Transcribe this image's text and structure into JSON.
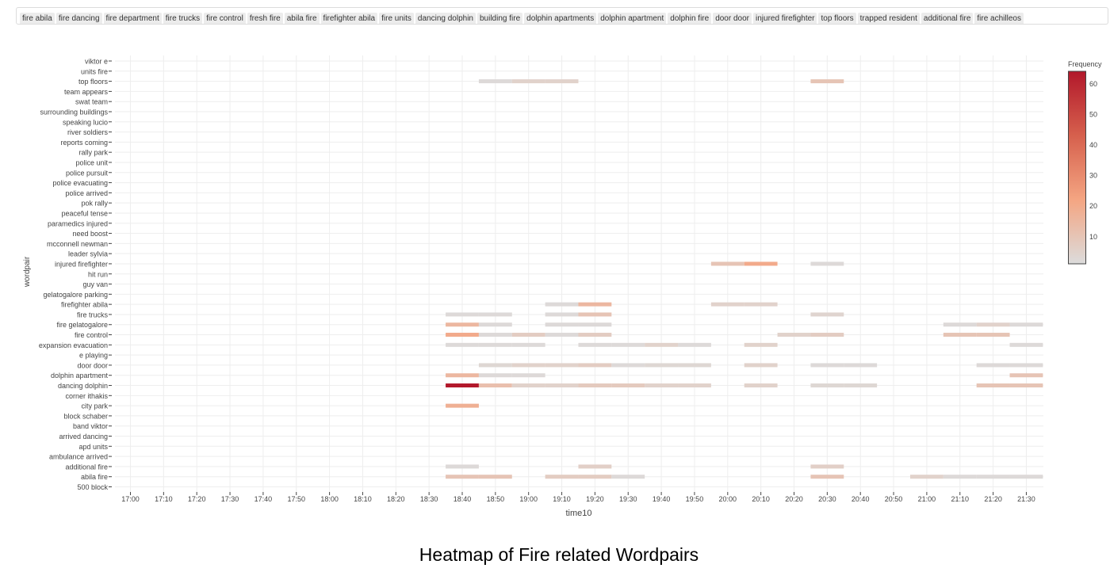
{
  "filter_tags": [
    "fire abila",
    "fire dancing",
    "fire department",
    "fire trucks",
    "fire control",
    "fresh fire",
    "abila fire",
    "firefighter abila",
    "fire units",
    "dancing dolphin",
    "building fire",
    "dolphin apartments",
    "dolphin apartment",
    "dolphin fire",
    "door door",
    "injured firefighter",
    "top floors",
    "trapped resident",
    "additional fire",
    "fire achilleos"
  ],
  "caption": "Heatmap of Fire related Wordpairs",
  "chart_data": {
    "type": "heatmap",
    "xlabel": "time10",
    "ylabel": "wordpair",
    "legend_title": "Frequency",
    "legend_ticks": [
      10,
      20,
      30,
      40,
      50,
      60
    ],
    "zlim": [
      1,
      64
    ],
    "colorscale": [
      "#dcdcdc",
      "#f4a582",
      "#d6604d",
      "#b2182b"
    ],
    "x_ticks": [
      "17:00",
      "17:10",
      "17:20",
      "17:30",
      "17:40",
      "17:50",
      "18:00",
      "18:10",
      "18:20",
      "18:30",
      "18:40",
      "18:50",
      "19:00",
      "19:10",
      "19:20",
      "19:30",
      "19:40",
      "19:50",
      "20:00",
      "20:10",
      "20:20",
      "20:30",
      "20:40",
      "20:50",
      "21:00",
      "21:10",
      "21:20",
      "21:30"
    ],
    "y_categories": [
      "500 block",
      "abila fire",
      "additional fire",
      "ambulance arrived",
      "apd units",
      "arrived dancing",
      "band viktor",
      "block schaber",
      "city park",
      "corner ithakis",
      "dancing dolphin",
      "dolphin apartment",
      "door door",
      "e playing",
      "expansion evacuation",
      "fire control",
      "fire gelatogalore",
      "fire trucks",
      "firefighter abila",
      "gelatogalore parking",
      "guy van",
      "hit run",
      "injured firefighter",
      "leader sylvia",
      "mcconnell newman",
      "need boost",
      "paramedics injured",
      "peaceful tense",
      "pok rally",
      "police arrived",
      "police evacuating",
      "police pursuit",
      "police unit",
      "rally park",
      "reports coming",
      "river soldiers",
      "speaking lucio",
      "surrounding buildings",
      "swat team",
      "team appears",
      "top floors",
      "units fire",
      "viktor e"
    ],
    "cells": [
      {
        "y": "top floors",
        "x": "18:50",
        "z": 2
      },
      {
        "y": "top floors",
        "x": "19:00",
        "z": 5
      },
      {
        "y": "top floors",
        "x": "19:10",
        "z": 5
      },
      {
        "y": "top floors",
        "x": "20:30",
        "z": 10
      },
      {
        "y": "injured firefighter",
        "x": "20:00",
        "z": 10
      },
      {
        "y": "injured firefighter",
        "x": "20:10",
        "z": 20
      },
      {
        "y": "injured firefighter",
        "x": "20:30",
        "z": 2
      },
      {
        "y": "firefighter abila",
        "x": "19:10",
        "z": 2
      },
      {
        "y": "firefighter abila",
        "x": "19:20",
        "z": 15
      },
      {
        "y": "firefighter abila",
        "x": "20:00",
        "z": 5
      },
      {
        "y": "firefighter abila",
        "x": "20:10",
        "z": 5
      },
      {
        "y": "fire trucks",
        "x": "18:40",
        "z": 2
      },
      {
        "y": "fire trucks",
        "x": "18:50",
        "z": 2
      },
      {
        "y": "fire trucks",
        "x": "19:10",
        "z": 2
      },
      {
        "y": "fire trucks",
        "x": "19:20",
        "z": 10
      },
      {
        "y": "fire trucks",
        "x": "20:30",
        "z": 4
      },
      {
        "y": "fire gelatogalore",
        "x": "18:40",
        "z": 15
      },
      {
        "y": "fire gelatogalore",
        "x": "18:50",
        "z": 2
      },
      {
        "y": "fire gelatogalore",
        "x": "19:10",
        "z": 2
      },
      {
        "y": "fire gelatogalore",
        "x": "19:20",
        "z": 2
      },
      {
        "y": "fire gelatogalore",
        "x": "21:10",
        "z": 2
      },
      {
        "y": "fire gelatogalore",
        "x": "21:20",
        "z": 5
      },
      {
        "y": "fire gelatogalore",
        "x": "21:30",
        "z": 2
      },
      {
        "y": "fire control",
        "x": "18:40",
        "z": 20
      },
      {
        "y": "fire control",
        "x": "18:50",
        "z": 2
      },
      {
        "y": "fire control",
        "x": "19:00",
        "z": 7
      },
      {
        "y": "fire control",
        "x": "19:10",
        "z": 2
      },
      {
        "y": "fire control",
        "x": "19:20",
        "z": 7
      },
      {
        "y": "fire control",
        "x": "20:20",
        "z": 5
      },
      {
        "y": "fire control",
        "x": "20:30",
        "z": 7
      },
      {
        "y": "fire control",
        "x": "21:10",
        "z": 10
      },
      {
        "y": "fire control",
        "x": "21:20",
        "z": 10
      },
      {
        "y": "expansion evacuation",
        "x": "18:40",
        "z": 2
      },
      {
        "y": "expansion evacuation",
        "x": "18:50",
        "z": 2
      },
      {
        "y": "expansion evacuation",
        "x": "19:00",
        "z": 2
      },
      {
        "y": "expansion evacuation",
        "x": "19:20",
        "z": 2
      },
      {
        "y": "expansion evacuation",
        "x": "19:30",
        "z": 2
      },
      {
        "y": "expansion evacuation",
        "x": "19:40",
        "z": 5
      },
      {
        "y": "expansion evacuation",
        "x": "19:50",
        "z": 2
      },
      {
        "y": "expansion evacuation",
        "x": "20:10",
        "z": 5
      },
      {
        "y": "expansion evacuation",
        "x": "21:30",
        "z": 2
      },
      {
        "y": "door door",
        "x": "18:50",
        "z": 3
      },
      {
        "y": "door door",
        "x": "19:00",
        "z": 5
      },
      {
        "y": "door door",
        "x": "19:10",
        "z": 5
      },
      {
        "y": "door door",
        "x": "19:20",
        "z": 7
      },
      {
        "y": "door door",
        "x": "19:30",
        "z": 2
      },
      {
        "y": "door door",
        "x": "19:40",
        "z": 3
      },
      {
        "y": "door door",
        "x": "19:50",
        "z": 3
      },
      {
        "y": "door door",
        "x": "20:10",
        "z": 5
      },
      {
        "y": "door door",
        "x": "20:30",
        "z": 2
      },
      {
        "y": "door door",
        "x": "20:40",
        "z": 2
      },
      {
        "y": "door door",
        "x": "21:20",
        "z": 2
      },
      {
        "y": "door door",
        "x": "21:30",
        "z": 2
      },
      {
        "y": "dolphin apartment",
        "x": "18:40",
        "z": 15
      },
      {
        "y": "dolphin apartment",
        "x": "18:50",
        "z": 2
      },
      {
        "y": "dolphin apartment",
        "x": "19:00",
        "z": 2
      },
      {
        "y": "dolphin apartment",
        "x": "21:30",
        "z": 10
      },
      {
        "y": "dancing dolphin",
        "x": "18:40",
        "z": 64
      },
      {
        "y": "dancing dolphin",
        "x": "18:50",
        "z": 12
      },
      {
        "y": "dancing dolphin",
        "x": "19:00",
        "z": 5
      },
      {
        "y": "dancing dolphin",
        "x": "19:10",
        "z": 5
      },
      {
        "y": "dancing dolphin",
        "x": "19:20",
        "z": 8
      },
      {
        "y": "dancing dolphin",
        "x": "19:30",
        "z": 8
      },
      {
        "y": "dancing dolphin",
        "x": "19:40",
        "z": 5
      },
      {
        "y": "dancing dolphin",
        "x": "19:50",
        "z": 5
      },
      {
        "y": "dancing dolphin",
        "x": "20:10",
        "z": 5
      },
      {
        "y": "dancing dolphin",
        "x": "20:30",
        "z": 3
      },
      {
        "y": "dancing dolphin",
        "x": "20:40",
        "z": 3
      },
      {
        "y": "dancing dolphin",
        "x": "21:20",
        "z": 10
      },
      {
        "y": "dancing dolphin",
        "x": "21:30",
        "z": 10
      },
      {
        "y": "city park",
        "x": "18:40",
        "z": 18
      },
      {
        "y": "additional fire",
        "x": "18:40",
        "z": 2
      },
      {
        "y": "additional fire",
        "x": "19:20",
        "z": 6
      },
      {
        "y": "additional fire",
        "x": "20:30",
        "z": 6
      },
      {
        "y": "abila fire",
        "x": "18:40",
        "z": 10
      },
      {
        "y": "abila fire",
        "x": "18:50",
        "z": 10
      },
      {
        "y": "abila fire",
        "x": "19:10",
        "z": 7
      },
      {
        "y": "abila fire",
        "x": "19:20",
        "z": 7
      },
      {
        "y": "abila fire",
        "x": "19:30",
        "z": 2
      },
      {
        "y": "abila fire",
        "x": "20:30",
        "z": 10
      },
      {
        "y": "abila fire",
        "x": "21:00",
        "z": 5
      },
      {
        "y": "abila fire",
        "x": "21:10",
        "z": 2
      },
      {
        "y": "abila fire",
        "x": "21:20",
        "z": 2
      },
      {
        "y": "abila fire",
        "x": "21:30",
        "z": 2
      }
    ]
  }
}
